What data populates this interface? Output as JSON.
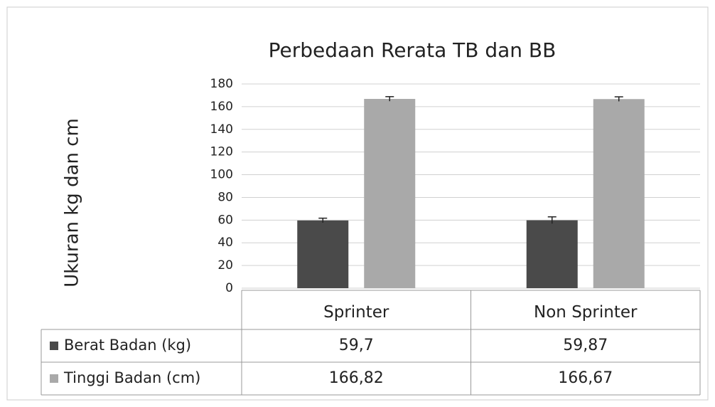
{
  "chart_data": {
    "type": "bar",
    "title": "Perbedaan Rerata TB dan BB",
    "y_label": "Ukuran kg dan cm",
    "categories": [
      "Sprinter",
      "Non Sprinter"
    ],
    "series": [
      {
        "name": "Berat Badan (kg)",
        "color": "#4a4a4a",
        "values": [
          59.7,
          59.87
        ],
        "value_labels": [
          "59,7",
          "59,87"
        ],
        "errors": [
          2,
          3
        ]
      },
      {
        "name": "Tinggi Badan (cm)",
        "color": "#a9a9a9",
        "values": [
          166.82,
          166.67
        ],
        "value_labels": [
          "166,82",
          "166,67"
        ],
        "errors": [
          2,
          2
        ]
      }
    ],
    "ylim": [
      0,
      180
    ],
    "yticks": [
      0,
      20,
      40,
      60,
      80,
      100,
      120,
      140,
      160,
      180
    ],
    "grid": true
  }
}
